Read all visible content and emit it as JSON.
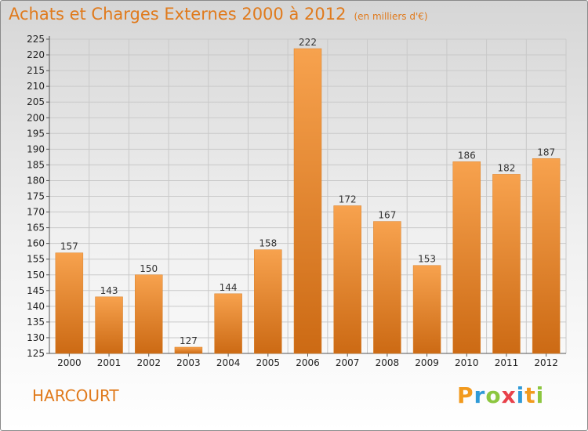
{
  "chart_data": {
    "type": "bar",
    "title": "Achats et Charges Externes 2000 à 2012",
    "subtitle": "(en milliers d'€)",
    "categories": [
      "2000",
      "2001",
      "2002",
      "2003",
      "2004",
      "2005",
      "2006",
      "2007",
      "2008",
      "2009",
      "2010",
      "2011",
      "2012"
    ],
    "values": [
      157,
      143,
      150,
      127,
      144,
      158,
      222,
      172,
      167,
      153,
      186,
      182,
      187
    ],
    "ylim": [
      125,
      225
    ],
    "yticks": [
      125,
      130,
      135,
      140,
      145,
      150,
      155,
      160,
      165,
      170,
      175,
      180,
      185,
      190,
      195,
      200,
      205,
      210,
      215,
      220,
      225
    ],
    "grid": true,
    "colors": {
      "bar_light": "#f7a24e",
      "bar_dark": "#cc6a14",
      "accent": "#e07a1c"
    }
  },
  "footer": {
    "commune": "HARCOURT",
    "brand": "Proxiti",
    "brand_colors": [
      "#f29a1e",
      "#2f9ad7",
      "#8cc63f",
      "#e8414a",
      "#2f9ad7",
      "#f29a1e",
      "#8cc63f"
    ]
  }
}
